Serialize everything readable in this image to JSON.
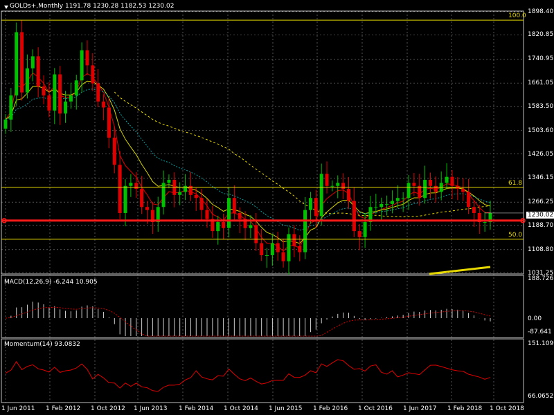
{
  "symbol_info": "GOLDs+,Monthly  1191.78 1230.28 1182.53 1230.02",
  "price_axis": [
    "1898.40",
    "1820.85",
    "1740.95",
    "1661.05",
    "1583.50",
    "1503.60",
    "1426.05",
    "1346.15",
    "1266.25",
    "1188.70",
    "1108.80",
    "1031.25"
  ],
  "current_price": "1230.02",
  "fib_levels": [
    {
      "label": "100.0",
      "price": 1870
    },
    {
      "label": "61.8",
      "price": 1315
    },
    {
      "label": "50.0",
      "price": 1143
    }
  ],
  "horizontal_line_price": 1205,
  "date_axis": [
    "1 Jun 2011",
    "1 Feb 2012",
    "1 Oct 2012",
    "1 Jun 2013",
    "1 Feb 2014",
    "1 Oct 2014",
    "1 Jun 2015",
    "1 Feb 2016",
    "1 Oct 2016",
    "1 Jun 2017",
    "1 Feb 2018",
    "1 Oct 2018"
  ],
  "macd": {
    "label": "MACD(12,26,9) -6.244 10.905",
    "axis": [
      "188.726",
      "0.00",
      "-87.641"
    ]
  },
  "momentum": {
    "label": "Momentum(14) 93.0832",
    "axis": [
      "151.1099",
      "66.0652"
    ]
  },
  "colors": {
    "bull": "#00c000",
    "bear": "#e00000",
    "fib": "#e6d800",
    "hline": "#ff1a1a",
    "grid": "#8a8a8a",
    "ma_fast": "#e00000",
    "ma_mid": "#d4d400",
    "ma_slow": "#0aa0a0",
    "ma_long": "#e6d800"
  },
  "chart_data": {
    "type": "candlestick",
    "closes": [
      1540,
      1620,
      1830,
      1630,
      1710,
      1750,
      1650,
      1620,
      1570,
      1690,
      1560,
      1600,
      1620,
      1670,
      1770,
      1720,
      1660,
      1600,
      1580,
      1480,
      1390,
      1230,
      1320,
      1330,
      1310,
      1250,
      1240,
      1200,
      1250,
      1330,
      1340,
      1290,
      1300,
      1320,
      1290,
      1280,
      1240,
      1210,
      1170,
      1200,
      1180,
      1280,
      1230,
      1210,
      1180,
      1190,
      1130,
      1090,
      1090,
      1130,
      1100,
      1070,
      1160,
      1120,
      1100,
      1240,
      1280,
      1220,
      1360,
      1320,
      1320,
      1330,
      1310,
      1270,
      1170,
      1150,
      1200,
      1250,
      1250,
      1260,
      1260,
      1270,
      1280,
      1280,
      1330,
      1320,
      1280,
      1340,
      1320,
      1300,
      1330,
      1350,
      1320,
      1310,
      1300,
      1250,
      1230,
      1200,
      1200,
      1230
    ]
  }
}
